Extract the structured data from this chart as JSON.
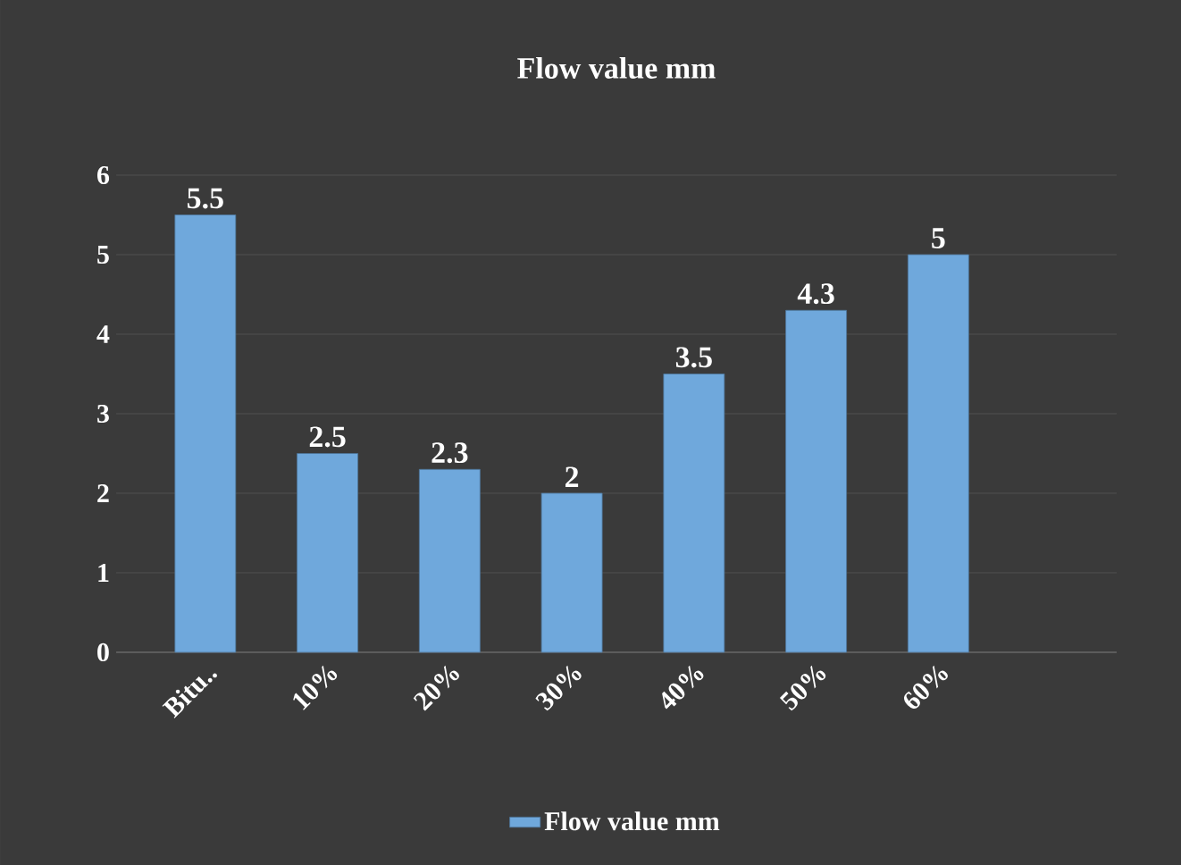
{
  "chart_data": {
    "type": "bar",
    "title": "Flow value mm",
    "categories": [
      "Bitu..",
      "10%",
      "20%",
      "30%",
      "40%",
      "50%",
      "60%"
    ],
    "series": [
      {
        "name": "Flow value mm",
        "color": "#6fa8dc",
        "values": [
          5.5,
          2.5,
          2.3,
          2,
          3.5,
          4.3,
          5
        ]
      }
    ],
    "ylim": [
      0,
      6
    ],
    "yticks": [
      0,
      1,
      2,
      3,
      4,
      5,
      6
    ],
    "grid": "y",
    "legend": "bottom",
    "data_labels": true
  }
}
